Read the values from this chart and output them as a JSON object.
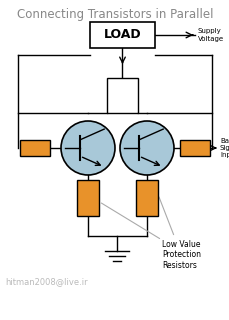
{
  "title": "Connecting Transistors in Parallel",
  "title_fontsize": 8.5,
  "title_color": "#888888",
  "bg_color": "#ffffff",
  "line_color": "#000000",
  "transistor_fill": "#a8c8d8",
  "resistor_fill": "#e8922a",
  "load_label": "LOAD",
  "supply_voltage_label": "Supply\nVoltage",
  "base_signal_label": "Base\nSignal\nInput",
  "low_value_label": "Low Value\nProtection\nResistors",
  "watermark": "hitman2008@live.ir"
}
